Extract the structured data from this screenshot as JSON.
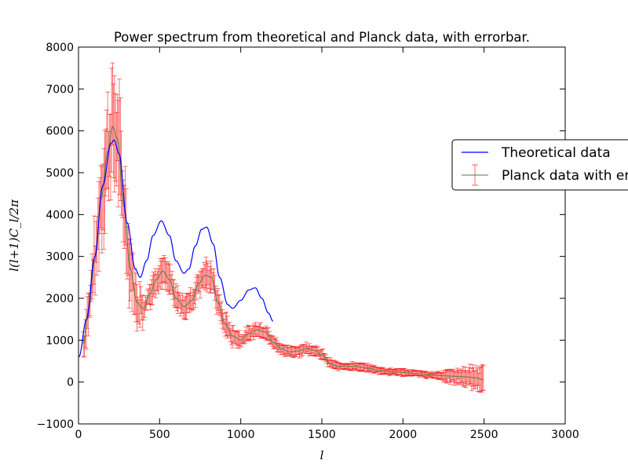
{
  "chart_data": {
    "type": "line",
    "title": "Power spectrum from theoretical and Planck data, with errorbar.",
    "xlabel": "l",
    "ylabel": "l(l+1)C_l/2π",
    "xlim": [
      0,
      3000
    ],
    "ylim": [
      -1000,
      8000
    ],
    "xticks": [
      "0",
      "500",
      "1000",
      "1500",
      "2000",
      "2500",
      "3000"
    ],
    "yticks": [
      "−1000",
      "0",
      "1000",
      "2000",
      "3000",
      "4000",
      "5000",
      "6000",
      "7000",
      "8000"
    ],
    "legend": {
      "placement": "right",
      "entries": [
        "Theoretical data",
        "Planck data with errorbar"
      ]
    },
    "colors": {
      "theory": "#0000ff",
      "planck_line": "#2e7d32",
      "planck_err": "#ff0000"
    },
    "series": [
      {
        "name": "Theoretical data",
        "x": [
          2,
          50,
          100,
          150,
          200,
          220,
          250,
          300,
          350,
          380,
          420,
          460,
          510,
          560,
          600,
          650,
          680,
          720,
          760,
          790,
          830,
          870,
          920,
          950,
          1000,
          1050,
          1090,
          1130,
          1170,
          1200
        ],
        "y": [
          600,
          1500,
          3000,
          4700,
          5700,
          5780,
          5450,
          3800,
          2700,
          2500,
          2900,
          3500,
          3850,
          3500,
          2900,
          2600,
          2700,
          3250,
          3650,
          3700,
          3300,
          2500,
          1850,
          1760,
          1950,
          2200,
          2250,
          2000,
          1650,
          1450
        ]
      },
      {
        "name": "Planck data with errorbar",
        "x": [
          30,
          60,
          100,
          140,
          180,
          210,
          240,
          280,
          320,
          360,
          400,
          440,
          480,
          520,
          560,
          600,
          650,
          700,
          740,
          780,
          820,
          860,
          900,
          950,
          1000,
          1050,
          1100,
          1150,
          1200,
          1250,
          1300,
          1350,
          1400,
          1450,
          1500,
          1550,
          1600,
          1650,
          1700,
          1750,
          1800,
          1850,
          1900,
          1950,
          2000,
          2050,
          2100,
          2150,
          2200,
          2250,
          2300,
          2350,
          2400,
          2450,
          2500
        ],
        "y": [
          900,
          1700,
          2900,
          4400,
          5500,
          6100,
          5800,
          4200,
          2700,
          1900,
          1750,
          2100,
          2450,
          2650,
          2450,
          2000,
          1800,
          1950,
          2350,
          2550,
          2500,
          1900,
          1400,
          1100,
          1000,
          1150,
          1250,
          1200,
          950,
          800,
          720,
          740,
          800,
          760,
          650,
          450,
          380,
          380,
          370,
          350,
          320,
          280,
          250,
          240,
          230,
          210,
          200,
          170,
          160,
          150,
          140,
          130,
          120,
          100,
          50
        ]
      }
    ]
  }
}
